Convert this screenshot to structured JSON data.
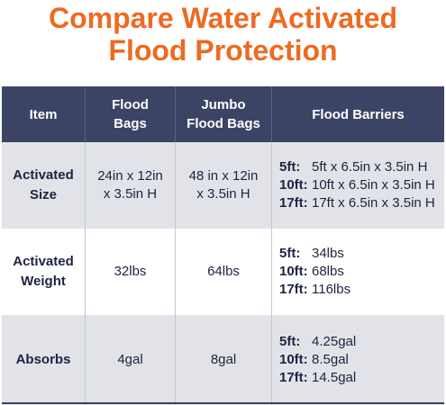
{
  "title": {
    "line1": "Compare Water Activated",
    "line2": "Flood Protection"
  },
  "colors": {
    "title": "#ee6a22",
    "header_bg": "#3b4465",
    "shaded_row": "#e2e3e8"
  },
  "table": {
    "headers": {
      "item": "Item",
      "flood_bags_1": "Flood",
      "flood_bags_2": "Bags",
      "jumbo_1": "Jumbo",
      "jumbo_2": "Flood Bags",
      "barriers": "Flood Barriers"
    },
    "rows": [
      {
        "label_1": "Activated",
        "label_2": "Size",
        "flood_bags_1": "24in x 12in",
        "flood_bags_2": "x 3.5in H",
        "jumbo_1": "48 in x 12in",
        "jumbo_2": "x 3.5in H",
        "barriers": [
          {
            "k": "5ft:",
            "v": "5ft x 6.5in x 3.5in H"
          },
          {
            "k": "10ft:",
            "v": "10ft x 6.5in x 3.5in H"
          },
          {
            "k": "17ft:",
            "v": "17ft x 6.5in x 3.5in H"
          }
        ]
      },
      {
        "label_1": "Activated",
        "label_2": "Weight",
        "flood_bags": "32lbs",
        "jumbo": "64lbs",
        "barriers": [
          {
            "k": "5ft:",
            "v": "34lbs"
          },
          {
            "k": "10ft:",
            "v": "68lbs"
          },
          {
            "k": "17ft:",
            "v": "116lbs"
          }
        ]
      },
      {
        "label": "Absorbs",
        "flood_bags": "4gal",
        "jumbo": "8gal",
        "barriers": [
          {
            "k": "5ft:",
            "v": "4.25gal"
          },
          {
            "k": "10ft:",
            "v": "8.5gal"
          },
          {
            "k": "17ft:",
            "v": "14.5gal"
          }
        ]
      }
    ]
  }
}
